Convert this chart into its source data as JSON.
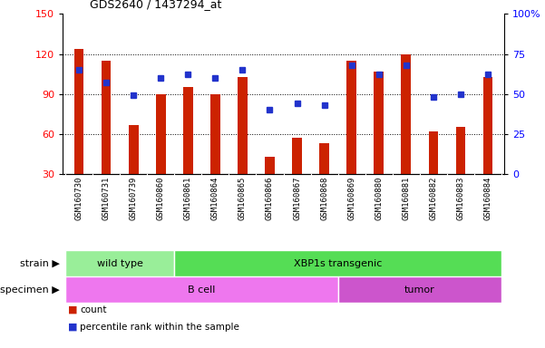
{
  "title": "GDS2640 / 1437294_at",
  "samples": [
    "GSM160730",
    "GSM160731",
    "GSM160739",
    "GSM160860",
    "GSM160861",
    "GSM160864",
    "GSM160865",
    "GSM160866",
    "GSM160867",
    "GSM160868",
    "GSM160869",
    "GSM160880",
    "GSM160881",
    "GSM160882",
    "GSM160883",
    "GSM160884"
  ],
  "counts": [
    124,
    115,
    67,
    90,
    95,
    90,
    103,
    43,
    57,
    53,
    115,
    107,
    120,
    62,
    65,
    103
  ],
  "percentiles": [
    65,
    57,
    49,
    60,
    62,
    60,
    65,
    40,
    44,
    43,
    68,
    62,
    68,
    48,
    50,
    62
  ],
  "ylim_left": [
    30,
    150
  ],
  "ylim_right": [
    0,
    100
  ],
  "yticks_left": [
    30,
    60,
    90,
    120,
    150
  ],
  "yticks_right": [
    0,
    25,
    50,
    75,
    100
  ],
  "ytick_labels_right": [
    "0",
    "25",
    "50",
    "75",
    "100%"
  ],
  "bar_color": "#cc2200",
  "dot_color": "#2233cc",
  "bar_bottom": 30,
  "strain_groups": [
    {
      "label": "wild type",
      "start": 0,
      "end": 4,
      "color": "#99ee99"
    },
    {
      "label": "XBP1s transgenic",
      "start": 4,
      "end": 16,
      "color": "#55dd55"
    }
  ],
  "specimen_groups": [
    {
      "label": "B cell",
      "start": 0,
      "end": 10,
      "color": "#ee77ee"
    },
    {
      "label": "tumor",
      "start": 10,
      "end": 16,
      "color": "#cc55cc"
    }
  ],
  "strain_label": "strain",
  "specimen_label": "specimen",
  "legend_count_label": "count",
  "legend_percentile_label": "percentile rank within the sample",
  "tick_area_color": "#cccccc"
}
